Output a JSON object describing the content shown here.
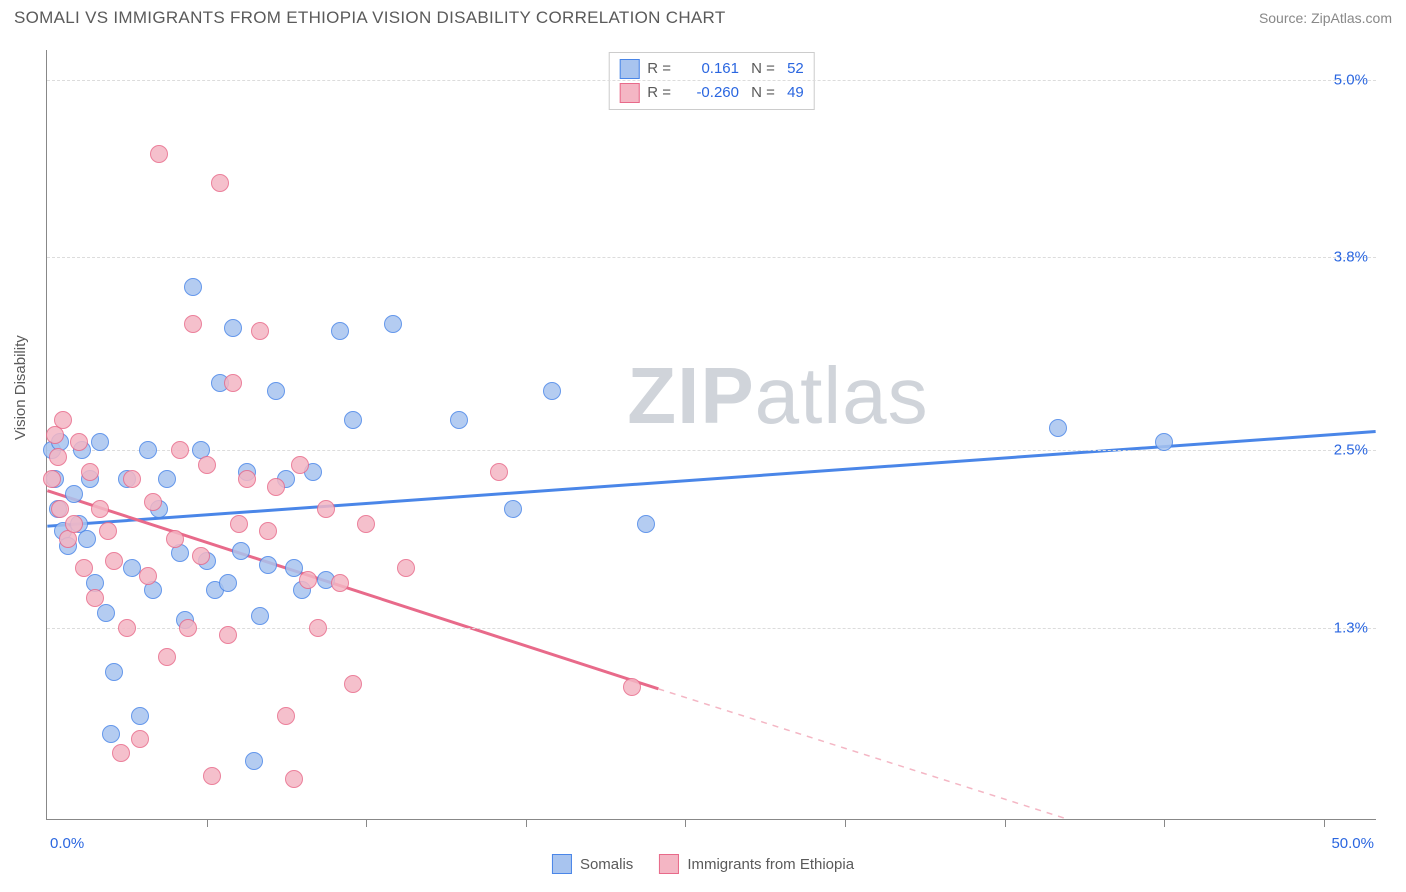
{
  "header": {
    "title": "SOMALI VS IMMIGRANTS FROM ETHIOPIA VISION DISABILITY CORRELATION CHART",
    "source": "Source: ZipAtlas.com"
  },
  "chart": {
    "type": "scatter",
    "ylabel": "Vision Disability",
    "xlim": [
      0,
      50
    ],
    "ylim": [
      0,
      5.2
    ],
    "xticks": [
      0,
      6,
      12,
      18,
      24,
      30,
      36,
      42,
      48,
      50
    ],
    "xtick_labels": {
      "0": "0.0%",
      "50": "50.0%"
    },
    "yticks": [
      1.3,
      2.5,
      3.8,
      5.0
    ],
    "ytick_labels": [
      "1.3%",
      "2.5%",
      "3.8%",
      "5.0%"
    ],
    "grid_color": "#dcdcdc",
    "background_color": "#ffffff",
    "axis_color": "#888888",
    "point_radius": 9,
    "point_stroke_width": 1.5,
    "point_fill_opacity": 0.35,
    "watermark": {
      "bold": "ZIP",
      "light": "atlas",
      "color": "#d0d4da"
    },
    "series": [
      {
        "name": "Somalis",
        "color_stroke": "#4a86e8",
        "color_fill": "#a8c4ef",
        "R": "0.161",
        "N": "52",
        "trend": {
          "x1": 0,
          "y1": 1.98,
          "x2": 50,
          "y2": 2.62,
          "width": 3
        },
        "points": [
          [
            0.2,
            2.5
          ],
          [
            0.3,
            2.3
          ],
          [
            0.4,
            2.1
          ],
          [
            0.5,
            2.55
          ],
          [
            0.6,
            1.95
          ],
          [
            0.8,
            1.85
          ],
          [
            1.0,
            2.2
          ],
          [
            1.2,
            2.0
          ],
          [
            1.3,
            2.5
          ],
          [
            1.5,
            1.9
          ],
          [
            1.6,
            2.3
          ],
          [
            1.8,
            1.6
          ],
          [
            2.0,
            2.55
          ],
          [
            2.2,
            1.4
          ],
          [
            2.4,
            0.58
          ],
          [
            2.5,
            1.0
          ],
          [
            3.0,
            2.3
          ],
          [
            3.2,
            1.7
          ],
          [
            3.5,
            0.7
          ],
          [
            3.8,
            2.5
          ],
          [
            4.0,
            1.55
          ],
          [
            4.2,
            2.1
          ],
          [
            4.5,
            2.3
          ],
          [
            5.0,
            1.8
          ],
          [
            5.2,
            1.35
          ],
          [
            5.5,
            3.6
          ],
          [
            5.8,
            2.5
          ],
          [
            6.0,
            1.75
          ],
          [
            6.3,
            1.55
          ],
          [
            6.5,
            2.95
          ],
          [
            6.8,
            1.6
          ],
          [
            7.0,
            3.32
          ],
          [
            7.3,
            1.82
          ],
          [
            7.5,
            2.35
          ],
          [
            7.8,
            0.4
          ],
          [
            8.0,
            1.38
          ],
          [
            8.3,
            1.72
          ],
          [
            8.6,
            2.9
          ],
          [
            9.0,
            2.3
          ],
          [
            9.3,
            1.7
          ],
          [
            9.6,
            1.55
          ],
          [
            10.0,
            2.35
          ],
          [
            10.5,
            1.62
          ],
          [
            11.0,
            3.3
          ],
          [
            11.5,
            2.7
          ],
          [
            13.0,
            3.35
          ],
          [
            15.5,
            2.7
          ],
          [
            17.5,
            2.1
          ],
          [
            19.0,
            2.9
          ],
          [
            22.5,
            2.0
          ],
          [
            38.0,
            2.65
          ],
          [
            42.0,
            2.55
          ]
        ]
      },
      {
        "name": "Immigrants from Ethiopia",
        "color_stroke": "#e86a8a",
        "color_fill": "#f4b6c4",
        "R": "-0.260",
        "N": "49",
        "trend": {
          "x1": 0,
          "y1": 2.22,
          "x2": 23,
          "y2": 0.88,
          "width": 3
        },
        "trend_dash": {
          "x1": 23,
          "y1": 0.88,
          "x2": 48,
          "y2": -0.55
        },
        "points": [
          [
            0.2,
            2.3
          ],
          [
            0.3,
            2.6
          ],
          [
            0.4,
            2.45
          ],
          [
            0.5,
            2.1
          ],
          [
            0.6,
            2.7
          ],
          [
            0.8,
            1.9
          ],
          [
            1.0,
            2.0
          ],
          [
            1.2,
            2.55
          ],
          [
            1.4,
            1.7
          ],
          [
            1.6,
            2.35
          ],
          [
            1.8,
            1.5
          ],
          [
            2.0,
            2.1
          ],
          [
            2.3,
            1.95
          ],
          [
            2.5,
            1.75
          ],
          [
            2.8,
            0.45
          ],
          [
            3.0,
            1.3
          ],
          [
            3.2,
            2.3
          ],
          [
            3.5,
            0.55
          ],
          [
            3.8,
            1.65
          ],
          [
            4.0,
            2.15
          ],
          [
            4.2,
            4.5
          ],
          [
            4.5,
            1.1
          ],
          [
            4.8,
            1.9
          ],
          [
            5.0,
            2.5
          ],
          [
            5.3,
            1.3
          ],
          [
            5.5,
            3.35
          ],
          [
            5.8,
            1.78
          ],
          [
            6.0,
            2.4
          ],
          [
            6.2,
            0.3
          ],
          [
            6.5,
            4.3
          ],
          [
            6.8,
            1.25
          ],
          [
            7.0,
            2.95
          ],
          [
            7.2,
            2.0
          ],
          [
            7.5,
            2.3
          ],
          [
            8.0,
            3.3
          ],
          [
            8.3,
            1.95
          ],
          [
            8.6,
            2.25
          ],
          [
            9.0,
            0.7
          ],
          [
            9.3,
            0.28
          ],
          [
            9.5,
            2.4
          ],
          [
            9.8,
            1.62
          ],
          [
            10.2,
            1.3
          ],
          [
            10.5,
            2.1
          ],
          [
            11.0,
            1.6
          ],
          [
            11.5,
            0.92
          ],
          [
            12.0,
            2.0
          ],
          [
            13.5,
            1.7
          ],
          [
            17.0,
            2.35
          ],
          [
            22.0,
            0.9
          ]
        ]
      }
    ],
    "stat_legend": {
      "r_label": "R =",
      "n_label": "N ="
    },
    "bottom_legend_labels": [
      "Somalis",
      "Immigrants from Ethiopia"
    ]
  }
}
